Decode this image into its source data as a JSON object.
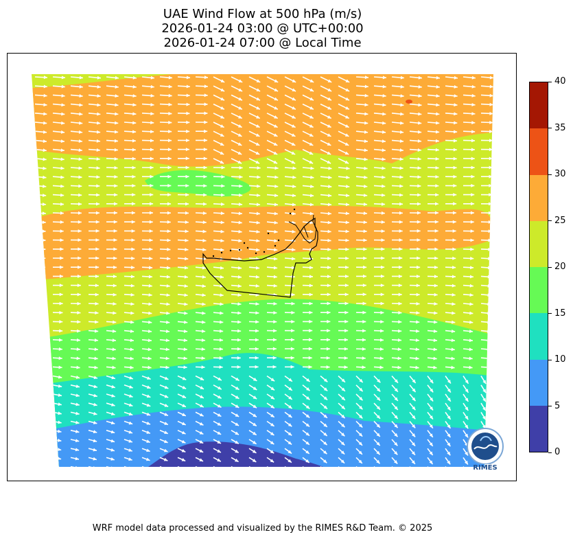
{
  "title": {
    "line1": "UAE Wind Flow at 500 hPa (m/s)",
    "line2": "2026-01-24 03:00 @ UTC+00:00",
    "line3": "2026-01-24 07:00 @ Local Time"
  },
  "colorbar": {
    "ticks": [
      "0",
      "5",
      "10",
      "15",
      "20",
      "25",
      "30",
      "35",
      "40"
    ],
    "bins": [
      {
        "range": [
          0,
          5
        ],
        "color": "#3f3fa8"
      },
      {
        "range": [
          5,
          10
        ],
        "color": "#4499f6"
      },
      {
        "range": [
          10,
          15
        ],
        "color": "#1fe0c0"
      },
      {
        "range": [
          15,
          20
        ],
        "color": "#66fa55"
      },
      {
        "range": [
          20,
          25
        ],
        "color": "#cdea2a"
      },
      {
        "range": [
          25,
          30
        ],
        "color": "#fdab37"
      },
      {
        "range": [
          30,
          35
        ],
        "color": "#ed5316"
      },
      {
        "range": [
          35,
          40
        ],
        "color": "#a41703"
      }
    ]
  },
  "map": {
    "vector_color": "#ffffff",
    "boundary_color": "#000000",
    "region": "United Arab Emirates"
  },
  "logo": {
    "text": "RIMES"
  },
  "footer": "WRF model data processed and visualized by the RIMES R&D Team. © 2025"
}
